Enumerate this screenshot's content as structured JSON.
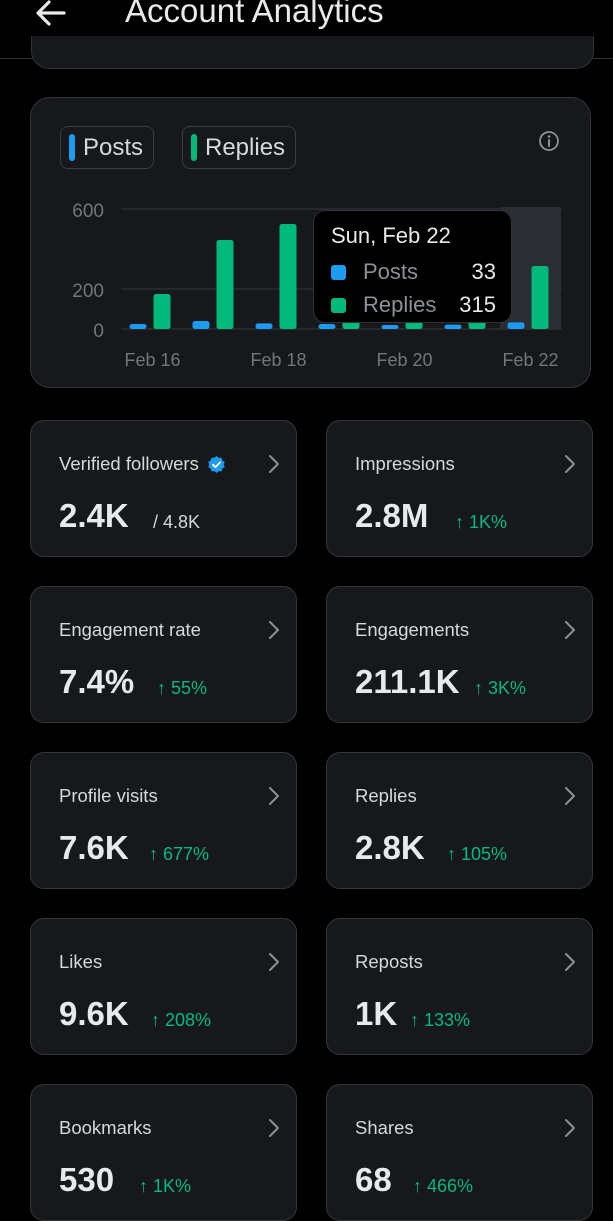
{
  "header": {
    "title": "Account Analytics"
  },
  "colors": {
    "posts": "#1d9bf0",
    "replies": "#00ba7c",
    "up": "#00ba7c"
  },
  "legend": {
    "posts": "Posts",
    "replies": "Replies"
  },
  "chart_data": {
    "type": "bar",
    "categories": [
      "Feb 16",
      "Feb 17",
      "Feb 18",
      "Feb 19",
      "Feb 20",
      "Feb 21",
      "Feb 22"
    ],
    "x_tick_labels": [
      "Feb 16",
      "Feb 18",
      "Feb 20",
      "Feb 22"
    ],
    "y_tick_labels": [
      "600",
      "200",
      "0"
    ],
    "ylim": [
      0,
      600
    ],
    "series": [
      {
        "name": "Posts",
        "values": [
          25,
          40,
          28,
          25,
          20,
          22,
          33
        ]
      },
      {
        "name": "Replies",
        "values": [
          175,
          445,
          525,
          80,
          60,
          40,
          315
        ]
      }
    ],
    "highlight_index": 6
  },
  "tooltip": {
    "date": "Sun, Feb 22",
    "posts_label": "Posts",
    "posts_value": "33",
    "replies_label": "Replies",
    "replies_value": "315"
  },
  "stats": [
    {
      "label": "Verified followers",
      "value": "2.4K",
      "sub": "/ 4.8K"
    },
    {
      "label": "Impressions",
      "value": "2.8M",
      "change": "↑ 1K%"
    },
    {
      "label": "Engagement rate",
      "value": "7.4%",
      "change": "↑ 55%"
    },
    {
      "label": "Engagements",
      "value": "211.1K",
      "change": "↑ 3K%"
    },
    {
      "label": "Profile visits",
      "value": "7.6K",
      "change": "↑ 677%"
    },
    {
      "label": "Replies",
      "value": "2.8K",
      "change": "↑ 105%"
    },
    {
      "label": "Likes",
      "value": "9.6K",
      "change": "↑ 208%"
    },
    {
      "label": "Reposts",
      "value": "1K",
      "change": "↑ 133%"
    },
    {
      "label": "Bookmarks",
      "value": "530",
      "change": "↑ 1K%"
    },
    {
      "label": "Shares",
      "value": "68",
      "change": "↑ 466%"
    }
  ]
}
